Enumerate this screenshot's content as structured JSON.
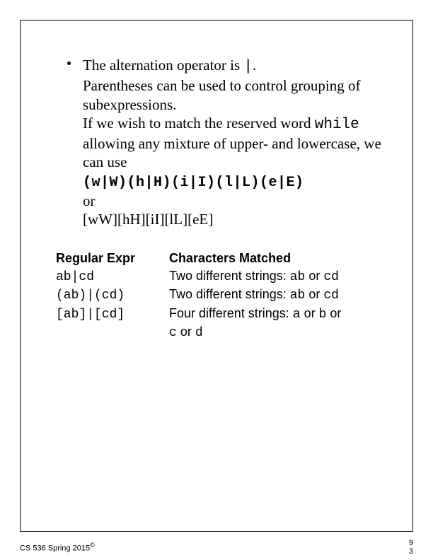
{
  "bullet": {
    "line1a": "The alternation operator is ",
    "line1b": "|",
    "line1c": ".",
    "line2": "Parentheses can be used to control grouping of subexpressions.",
    "line3a": "If we wish to match the reserved word ",
    "line3b": "while",
    "line3c": " allowing any mixture of upper- and lowercase, we can use",
    "regex1": "(w|W)(h|H)(i|I)(l|L)(e|E)",
    "or": "or",
    "regex2": "[wW][hH][iI][lL][eE]"
  },
  "table": {
    "header_left": "Regular Expr",
    "header_right": "Characters Matched",
    "rows": [
      {
        "expr": "ab|cd",
        "desc_a": "Two different strings: ",
        "desc_b": "ab",
        "desc_c": " or ",
        "desc_d": "cd",
        "desc_e": ""
      },
      {
        "expr": "(ab)|(cd)",
        "desc_a": "Two different strings: ",
        "desc_b": "ab",
        "desc_c": " or ",
        "desc_d": "cd",
        "desc_e": ""
      },
      {
        "expr": "[ab]|[cd]",
        "desc_a": "Four different strings: ",
        "desc_b": "a",
        "desc_c": " or ",
        "desc_d": "b",
        "desc_e": " or "
      }
    ],
    "row3_cont_a": "c",
    "row3_cont_b": " or ",
    "row3_cont_c": "d"
  },
  "footer": {
    "left": "CS 536  Spring 2015",
    "copy": "©",
    "right_a": "9",
    "right_b": "3"
  }
}
